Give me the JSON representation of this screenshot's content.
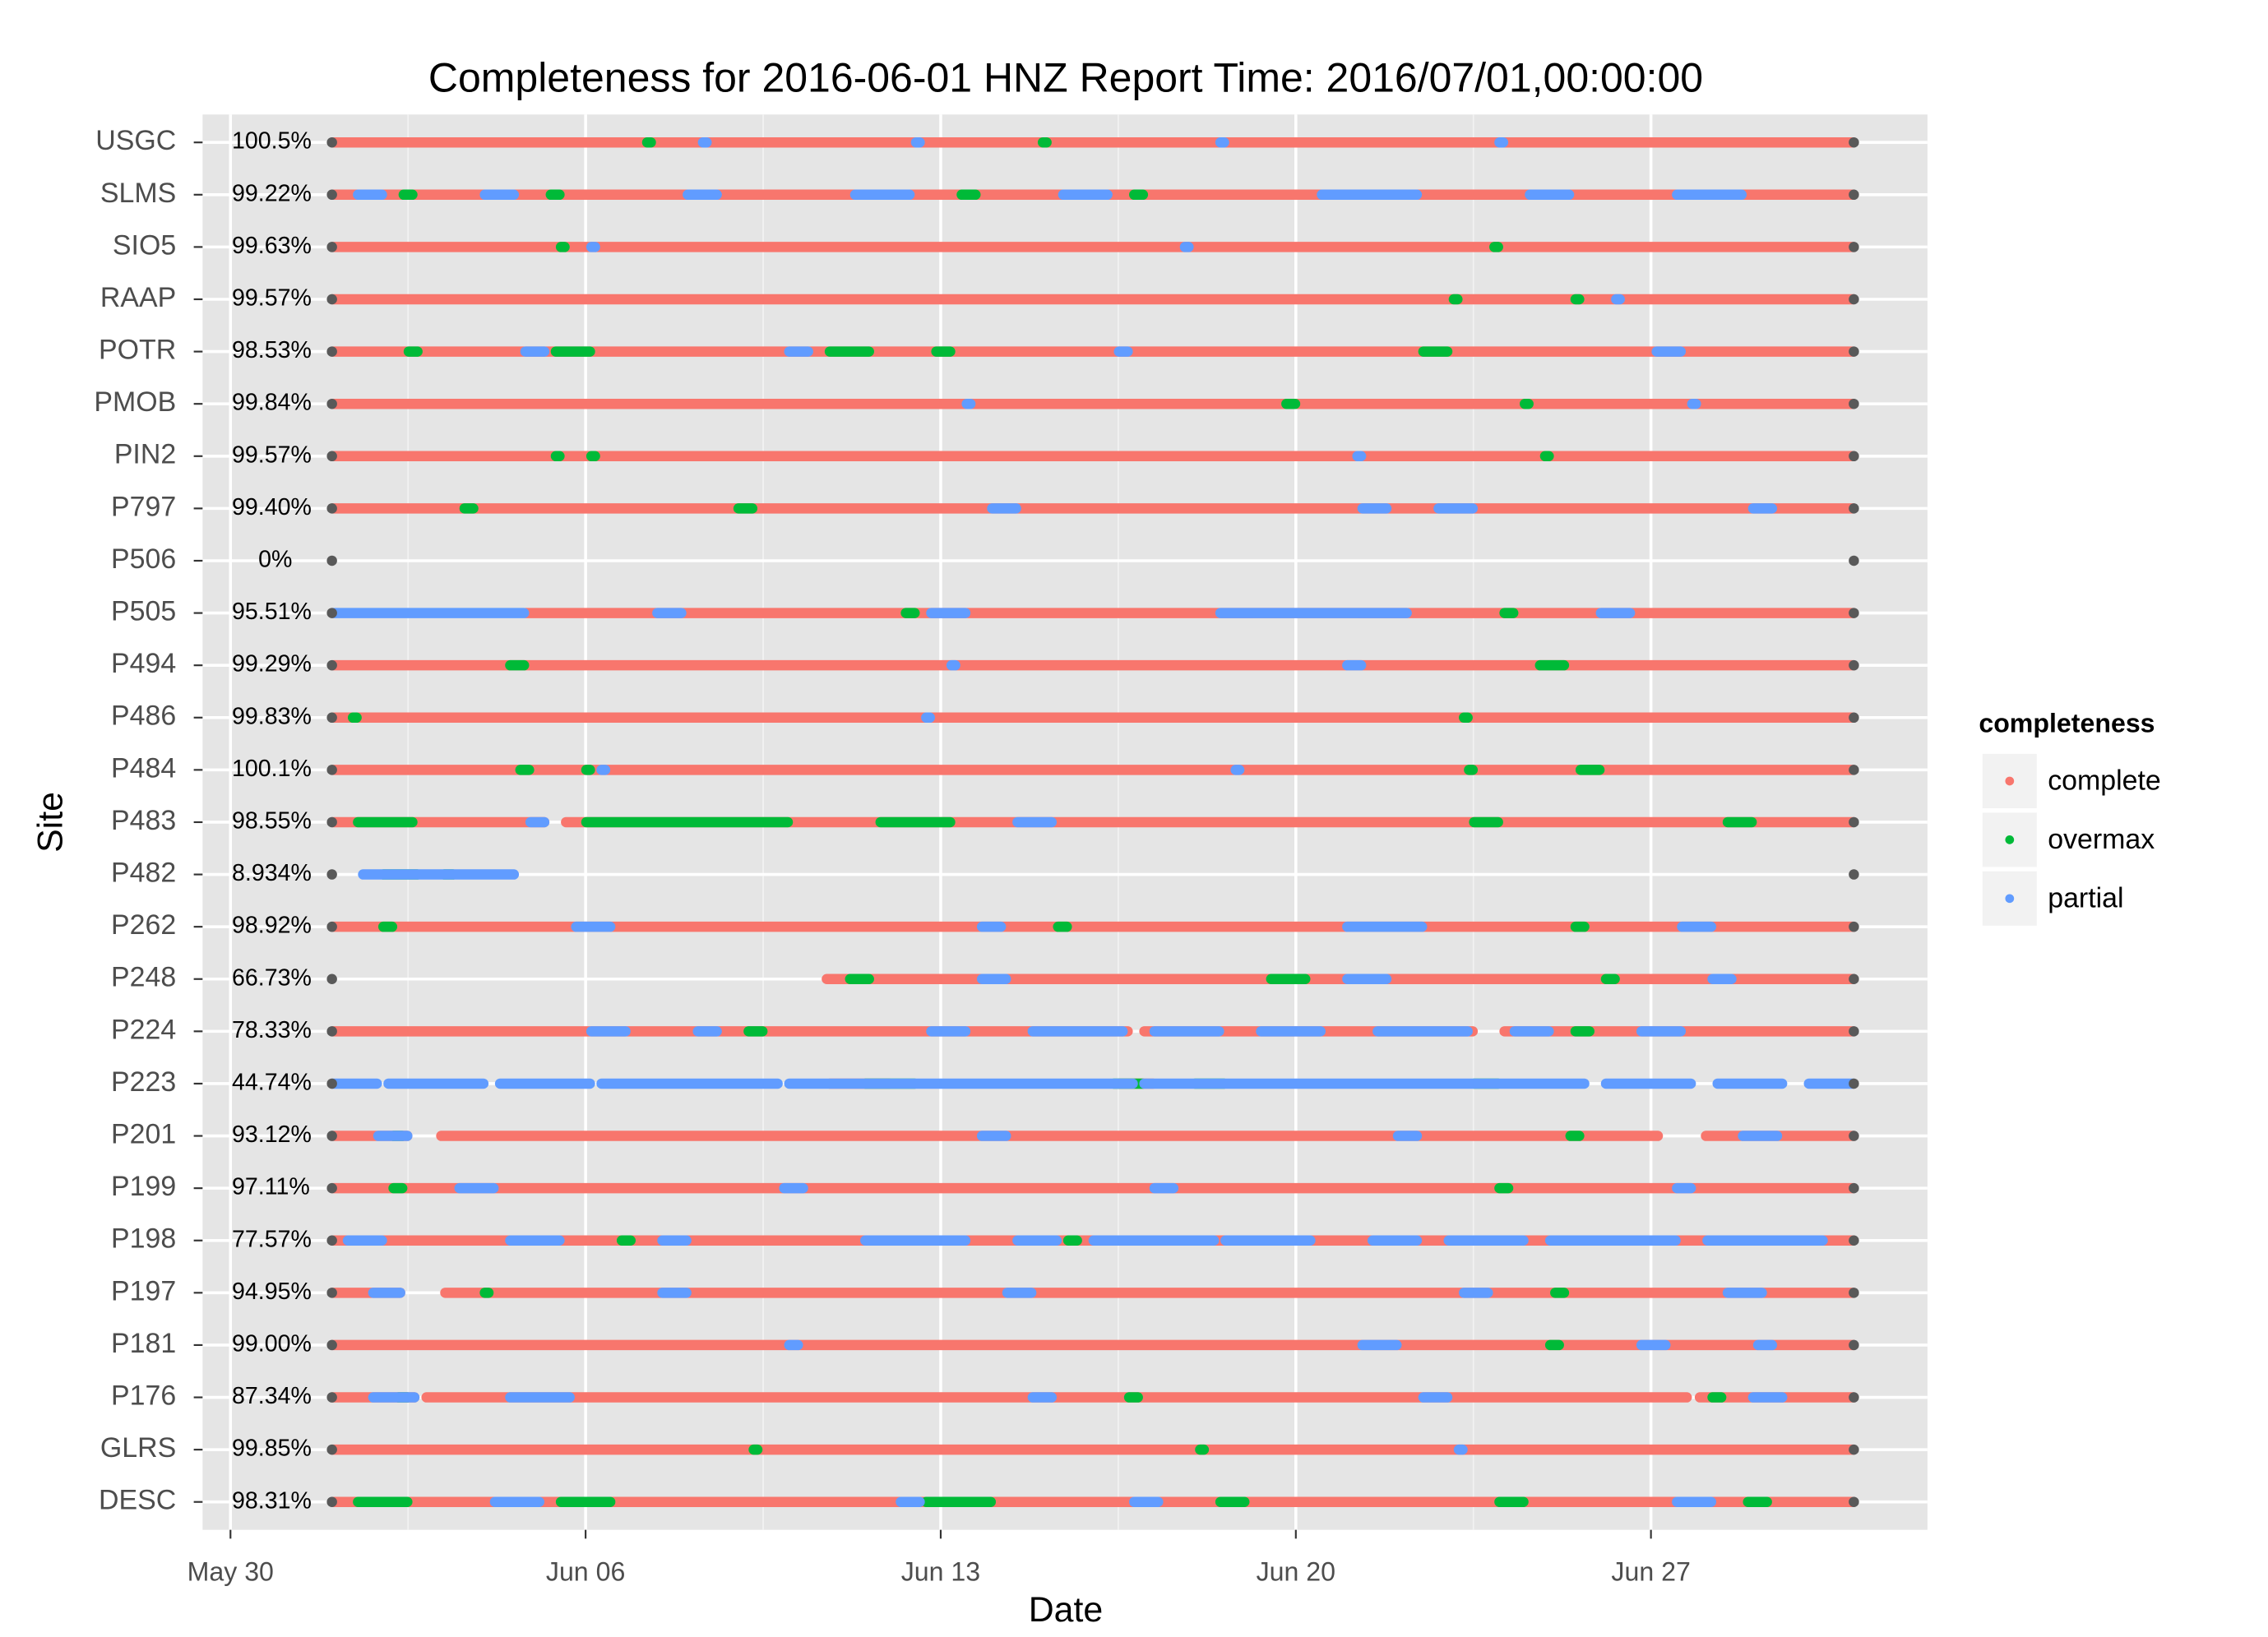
{
  "chart_data": {
    "type": "timeline",
    "title": "Completeness for  2016-06-01 HNZ  Report Time:  2016/07/01,00:00:00",
    "x_label": "Date",
    "y_label": "Site",
    "legend_title": "completeness",
    "xlim": [
      -0.55,
      33.45
    ],
    "xticks": [
      {
        "value": 0,
        "label": "May 30"
      },
      {
        "value": 7,
        "label": "Jun 06"
      },
      {
        "value": 14,
        "label": "Jun 13"
      },
      {
        "value": 21,
        "label": "Jun 20"
      },
      {
        "value": 28,
        "label": "Jun 27"
      }
    ],
    "grid": true,
    "window": [
      2,
      32
    ],
    "series": [
      {
        "name": "complete",
        "color": "#F8766D"
      },
      {
        "name": "overmax",
        "color": "#00BA38"
      },
      {
        "name": "partial",
        "color": "#619CFF"
      }
    ],
    "sites": [
      {
        "name": "USGC",
        "value": 100.5,
        "value_label": "100.5%",
        "complete": [
          [
            2,
            32
          ]
        ],
        "overmax": [
          [
            8.2,
            8.3
          ],
          [
            16,
            16.1
          ]
        ],
        "partial": [
          [
            9.3,
            9.4
          ],
          [
            13.5,
            13.6
          ],
          [
            19.5,
            19.6
          ],
          [
            25,
            25.1
          ]
        ]
      },
      {
        "name": "SLMS",
        "value": 99.22,
        "value_label": "99.22%",
        "complete": [
          [
            2,
            32
          ]
        ],
        "overmax": [
          [
            3.4,
            3.6
          ],
          [
            6.3,
            6.5
          ],
          [
            14.4,
            14.7
          ],
          [
            17.8,
            18
          ],
          [
            29.3,
            29.5
          ]
        ],
        "partial": [
          [
            2.5,
            3
          ],
          [
            5,
            5.6
          ],
          [
            9,
            9.6
          ],
          [
            12.3,
            13.4
          ],
          [
            16.4,
            17.3
          ],
          [
            21.5,
            23.4
          ],
          [
            25.6,
            26.4
          ],
          [
            28.5,
            29.8
          ]
        ]
      },
      {
        "name": "SIO5",
        "value": 99.63,
        "value_label": "99.63%",
        "complete": [
          [
            2,
            32
          ]
        ],
        "overmax": [
          [
            6.5,
            6.6
          ],
          [
            24.9,
            25
          ]
        ],
        "partial": [
          [
            7.1,
            7.2
          ],
          [
            18.8,
            18.9
          ]
        ]
      },
      {
        "name": "RAAP",
        "value": 99.57,
        "value_label": "99.57%",
        "complete": [
          [
            2,
            32
          ]
        ],
        "overmax": [
          [
            24.1,
            24.2
          ],
          [
            26.5,
            26.6
          ]
        ],
        "partial": [
          [
            27.3,
            27.4
          ]
        ]
      },
      {
        "name": "POTR",
        "value": 98.53,
        "value_label": "98.53%",
        "complete": [
          [
            2,
            32
          ]
        ],
        "overmax": [
          [
            3.5,
            3.7
          ],
          [
            6.4,
            7.1
          ],
          [
            11.8,
            12.6
          ],
          [
            13.9,
            14.2
          ],
          [
            23.5,
            24
          ]
        ],
        "partial": [
          [
            5.8,
            6.2
          ],
          [
            11,
            11.4
          ],
          [
            17.5,
            17.7
          ],
          [
            28.1,
            28.6
          ]
        ]
      },
      {
        "name": "PMOB",
        "value": 99.84,
        "value_label": "99.84%",
        "complete": [
          [
            2,
            32
          ]
        ],
        "overmax": [
          [
            20.8,
            21
          ],
          [
            25.5,
            25.6
          ]
        ],
        "partial": [
          [
            14.5,
            14.6
          ],
          [
            28.8,
            28.9
          ]
        ]
      },
      {
        "name": "PIN2",
        "value": 99.57,
        "value_label": "99.57%",
        "complete": [
          [
            2,
            32
          ]
        ],
        "overmax": [
          [
            6.4,
            6.5
          ],
          [
            7.1,
            7.2
          ],
          [
            25.9,
            26
          ]
        ],
        "partial": [
          [
            22.2,
            22.3
          ]
        ]
      },
      {
        "name": "P797",
        "value": 99.4,
        "value_label": "99.40%",
        "complete": [
          [
            2,
            32
          ]
        ],
        "overmax": [
          [
            4.6,
            4.8
          ],
          [
            10,
            10.3
          ]
        ],
        "partial": [
          [
            15,
            15.5
          ],
          [
            22.3,
            22.8
          ],
          [
            23.8,
            24.5
          ],
          [
            30,
            30.4
          ]
        ]
      },
      {
        "name": "P506",
        "value": 0,
        "value_label": "0%",
        "complete": [],
        "overmax": [],
        "partial": []
      },
      {
        "name": "P505",
        "value": 95.51,
        "value_label": "95.51%",
        "complete": [
          [
            5.8,
            32
          ]
        ],
        "overmax": [
          [
            13.3,
            13.5
          ],
          [
            25.1,
            25.3
          ]
        ],
        "partial": [
          [
            2,
            5.8
          ],
          [
            8.4,
            8.9
          ],
          [
            13.8,
            14.5
          ],
          [
            19.5,
            23.2
          ],
          [
            27,
            27.6
          ]
        ]
      },
      {
        "name": "P494",
        "value": 99.29,
        "value_label": "99.29%",
        "complete": [
          [
            2,
            32
          ]
        ],
        "overmax": [
          [
            5.5,
            5.8
          ],
          [
            25.8,
            26.3
          ]
        ],
        "partial": [
          [
            14.2,
            14.3
          ],
          [
            22,
            22.3
          ]
        ]
      },
      {
        "name": "P486",
        "value": 99.83,
        "value_label": "99.83%",
        "complete": [
          [
            2,
            32
          ]
        ],
        "overmax": [
          [
            2.4,
            2.5
          ],
          [
            24.3,
            24.4
          ]
        ],
        "partial": [
          [
            13.7,
            13.8
          ]
        ]
      },
      {
        "name": "P484",
        "value": 100.1,
        "value_label": "100.1%",
        "complete": [
          [
            2,
            32
          ]
        ],
        "overmax": [
          [
            5.7,
            5.9
          ],
          [
            7,
            7.1
          ],
          [
            24.4,
            24.5
          ],
          [
            26.6,
            27
          ]
        ],
        "partial": [
          [
            7.3,
            7.4
          ],
          [
            19.8,
            19.9
          ]
        ]
      },
      {
        "name": "P483",
        "value": 98.55,
        "value_label": "98.55%",
        "complete": [
          [
            2,
            6.2
          ],
          [
            6.6,
            32
          ]
        ],
        "overmax": [
          [
            2.5,
            3.6
          ],
          [
            7,
            11
          ],
          [
            12.8,
            14.2
          ],
          [
            24.5,
            25
          ],
          [
            29.5,
            30
          ]
        ],
        "partial": [
          [
            5.9,
            6.2
          ],
          [
            15.5,
            16.2
          ]
        ]
      },
      {
        "name": "P482",
        "value": 8.934,
        "value_label": "8.934%",
        "complete": [],
        "overmax": [
          [
            3,
            3.7
          ],
          [
            4.2,
            4.4
          ]
        ],
        "partial": [
          [
            2.6,
            5.6
          ]
        ]
      },
      {
        "name": "P262",
        "value": 98.92,
        "value_label": "98.92%",
        "complete": [
          [
            2,
            32
          ]
        ],
        "overmax": [
          [
            3,
            3.2
          ],
          [
            16.3,
            16.5
          ],
          [
            26.5,
            26.7
          ]
        ],
        "partial": [
          [
            6.8,
            7.5
          ],
          [
            14.8,
            15.2
          ],
          [
            22,
            23.5
          ],
          [
            28.6,
            29.2
          ]
        ]
      },
      {
        "name": "P248",
        "value": 66.73,
        "value_label": "66.73%",
        "complete": [
          [
            11.74,
            32
          ]
        ],
        "overmax": [
          [
            12.2,
            12.6
          ],
          [
            20.5,
            21.2
          ],
          [
            27.1,
            27.3
          ]
        ],
        "partial": [
          [
            14.8,
            15.3
          ],
          [
            22,
            22.8
          ],
          [
            29.2,
            29.6
          ]
        ]
      },
      {
        "name": "P224",
        "value": 78.33,
        "value_label": "78.33%",
        "complete": [
          [
            2,
            17.7
          ],
          [
            18,
            24.5
          ],
          [
            25.1,
            32
          ]
        ],
        "overmax": [
          [
            10.2,
            10.5
          ],
          [
            26.5,
            26.8
          ]
        ],
        "partial": [
          [
            7.1,
            7.8
          ],
          [
            9.2,
            9.6
          ],
          [
            13.8,
            14.5
          ],
          [
            15.8,
            17.6
          ],
          [
            18.2,
            19.5
          ],
          [
            20.3,
            21.5
          ],
          [
            22.6,
            24.4
          ],
          [
            25.3,
            26
          ],
          [
            27.8,
            28.6
          ]
        ]
      },
      {
        "name": "P223",
        "value": 44.74,
        "value_label": "44.74%",
        "complete": [
          [
            11.8,
            13
          ],
          [
            17.5,
            18.2
          ]
        ],
        "overmax": [
          [
            12.5,
            13.5
          ],
          [
            17.4,
            18
          ],
          [
            19,
            19.6
          ],
          [
            24.5,
            25
          ]
        ],
        "partial": [
          [
            2,
            2.9
          ],
          [
            3.1,
            5
          ],
          [
            5.3,
            7.1
          ],
          [
            7.3,
            10.8
          ],
          [
            11,
            17.8
          ],
          [
            18,
            26.7
          ],
          [
            27.1,
            28.8
          ],
          [
            29.3,
            30.6
          ],
          [
            31.1,
            32
          ]
        ]
      },
      {
        "name": "P201",
        "value": 93.12,
        "value_label": "93.12%",
        "complete": [
          [
            2,
            3.5
          ],
          [
            4.14,
            28.15
          ],
          [
            29.07,
            32
          ]
        ],
        "overmax": [
          [
            3.2,
            3.4
          ],
          [
            26.4,
            26.6
          ]
        ],
        "partial": [
          [
            2.9,
            3.5
          ],
          [
            14.8,
            15.3
          ],
          [
            23,
            23.4
          ],
          [
            29.8,
            30.5
          ]
        ]
      },
      {
        "name": "P199",
        "value": 97.11,
        "value_label": "97.11%",
        "complete": [
          [
            2,
            32
          ]
        ],
        "overmax": [
          [
            3.2,
            3.4
          ],
          [
            25,
            25.2
          ]
        ],
        "partial": [
          [
            4.5,
            5.2
          ],
          [
            10.9,
            11.3
          ],
          [
            18.2,
            18.6
          ],
          [
            28.5,
            28.8
          ]
        ]
      },
      {
        "name": "P198",
        "value": 77.57,
        "value_label": "77.57%",
        "complete": [
          [
            2,
            32
          ]
        ],
        "overmax": [
          [
            7.7,
            7.9
          ],
          [
            16.5,
            16.7
          ]
        ],
        "partial": [
          [
            2.3,
            3
          ],
          [
            5.5,
            6.5
          ],
          [
            8.5,
            9
          ],
          [
            12.5,
            14.5
          ],
          [
            15.5,
            16.3
          ],
          [
            17,
            19.4
          ],
          [
            19.6,
            21.3
          ],
          [
            22.5,
            23.4
          ],
          [
            24,
            25.5
          ],
          [
            26,
            28.5
          ],
          [
            29.1,
            31.4
          ]
        ]
      },
      {
        "name": "P197",
        "value": 94.95,
        "value_label": "94.95%",
        "complete": [
          [
            2,
            3.36
          ],
          [
            4.22,
            32
          ]
        ],
        "overmax": [
          [
            5,
            5.1
          ],
          [
            26.1,
            26.3
          ]
        ],
        "partial": [
          [
            2.8,
            3.36
          ],
          [
            8.5,
            9
          ],
          [
            15.3,
            15.8
          ],
          [
            24.3,
            24.8
          ],
          [
            29.5,
            30.2
          ]
        ]
      },
      {
        "name": "P181",
        "value": 99.0,
        "value_label": "99.00%",
        "complete": [
          [
            2,
            32
          ]
        ],
        "overmax": [
          [
            26,
            26.2
          ]
        ],
        "partial": [
          [
            11,
            11.2
          ],
          [
            22.3,
            23
          ],
          [
            27.8,
            28.3
          ],
          [
            30.1,
            30.4
          ]
        ]
      },
      {
        "name": "P176",
        "value": 87.34,
        "value_label": "87.34%",
        "complete": [
          [
            2,
            3.64
          ],
          [
            3.85,
            28.72
          ],
          [
            28.95,
            32
          ]
        ],
        "overmax": [
          [
            3.3,
            3.5
          ],
          [
            17.7,
            17.9
          ],
          [
            29.2,
            29.4
          ]
        ],
        "partial": [
          [
            2.8,
            3.64
          ],
          [
            5.5,
            6.7
          ],
          [
            15.8,
            16.2
          ],
          [
            23.5,
            24
          ],
          [
            30,
            30.6
          ]
        ]
      },
      {
        "name": "GLRS",
        "value": 99.85,
        "value_label": "99.85%",
        "complete": [
          [
            2,
            32
          ]
        ],
        "overmax": [
          [
            10.3,
            10.4
          ],
          [
            19.1,
            19.2
          ]
        ],
        "partial": [
          [
            24.2,
            24.3
          ]
        ]
      },
      {
        "name": "DESC",
        "value": 98.31,
        "value_label": "98.31%",
        "complete": [
          [
            2,
            32
          ]
        ],
        "overmax": [
          [
            2.5,
            3.5
          ],
          [
            6.5,
            7.5
          ],
          [
            13.7,
            15
          ],
          [
            19.5,
            20
          ],
          [
            25,
            25.5
          ],
          [
            29.9,
            30.3
          ]
        ],
        "partial": [
          [
            5.2,
            6.1
          ],
          [
            13.2,
            13.6
          ],
          [
            17.8,
            18.3
          ],
          [
            28.5,
            29.2
          ]
        ]
      }
    ]
  }
}
